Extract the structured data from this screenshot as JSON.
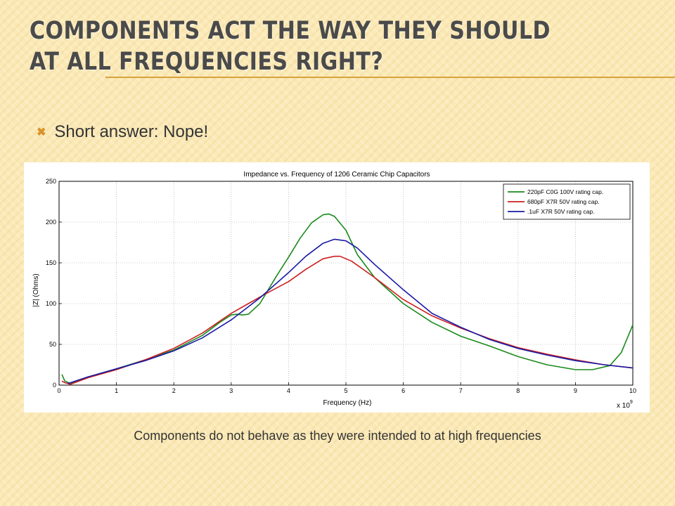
{
  "slide": {
    "title": "Components act the way they should at all frequencies right?",
    "bullet_icon": "cross-bullet-icon",
    "bullet": "Short answer: Nope!",
    "caption": "Components do not behave as they were intended to at high frequencies",
    "accent_color": "#d9a23b"
  },
  "chart_data": {
    "type": "line",
    "title": "Impedance vs. Frequency of 1206 Ceramic Chip Capacitors",
    "xlabel": "Frequency (Hz)",
    "ylabel": "|Z| (Ohms)",
    "x_multiplier_label": "x 10",
    "x_multiplier_exp": "9",
    "xlim": [
      0,
      10
    ],
    "ylim": [
      0,
      250
    ],
    "xticks": [
      0,
      1,
      2,
      3,
      4,
      5,
      6,
      7,
      8,
      9,
      10
    ],
    "yticks": [
      0,
      50,
      100,
      150,
      200,
      250
    ],
    "grid": true,
    "legend_position": "top-right",
    "series": [
      {
        "name": "220pF C0G 100V rating cap.",
        "color": "#1a8a1a",
        "x": [
          0.05,
          0.1,
          0.2,
          0.5,
          1,
          1.5,
          2,
          2.5,
          2.8,
          3.0,
          3.1,
          3.2,
          3.3,
          3.5,
          3.8,
          4.0,
          4.2,
          4.4,
          4.6,
          4.7,
          4.8,
          5.0,
          5.2,
          5.5,
          6.0,
          6.5,
          7.0,
          7.5,
          8.0,
          8.5,
          9.0,
          9.3,
          9.6,
          9.8,
          10.0
        ],
        "values": [
          13,
          5,
          2,
          10,
          20,
          31,
          43,
          61,
          77,
          86,
          87,
          86,
          87,
          100,
          135,
          157,
          180,
          199,
          209,
          210,
          207,
          190,
          160,
          132,
          100,
          77,
          60,
          48,
          35,
          25,
          19,
          19,
          24,
          40,
          74
        ]
      },
      {
        "name": "680pF X7R 50V rating cap.",
        "color": "#cc1f1f",
        "x": [
          0.05,
          0.1,
          0.2,
          0.5,
          1,
          1.5,
          2,
          2.5,
          3.0,
          3.3,
          3.6,
          4.0,
          4.3,
          4.6,
          4.8,
          4.9,
          5.1,
          5.5,
          6.0,
          6.5,
          7.0,
          7.5,
          8.0,
          8.5,
          9.0,
          9.5,
          10.0
        ],
        "values": [
          5,
          3,
          1,
          9,
          19,
          31,
          45,
          64,
          88,
          100,
          112,
          127,
          142,
          155,
          158,
          158,
          152,
          132,
          105,
          85,
          70,
          57,
          46,
          38,
          31,
          25,
          21
        ]
      },
      {
        "name": ".1uF X7R 50V rating cap.",
        "color": "#1a1aa6",
        "x": [
          0.15,
          0.2,
          0.5,
          1,
          1.5,
          2,
          2.5,
          3.0,
          3.5,
          4.0,
          4.3,
          4.6,
          4.8,
          5.0,
          5.2,
          5.5,
          6.0,
          6.5,
          7.0,
          7.5,
          8.0,
          8.5,
          9.0,
          9.5,
          10.0
        ],
        "values": [
          2,
          3,
          10,
          20,
          30,
          42,
          58,
          80,
          107,
          138,
          158,
          174,
          179,
          177,
          168,
          148,
          117,
          88,
          71,
          56,
          45,
          37,
          30,
          25,
          21
        ]
      }
    ]
  }
}
